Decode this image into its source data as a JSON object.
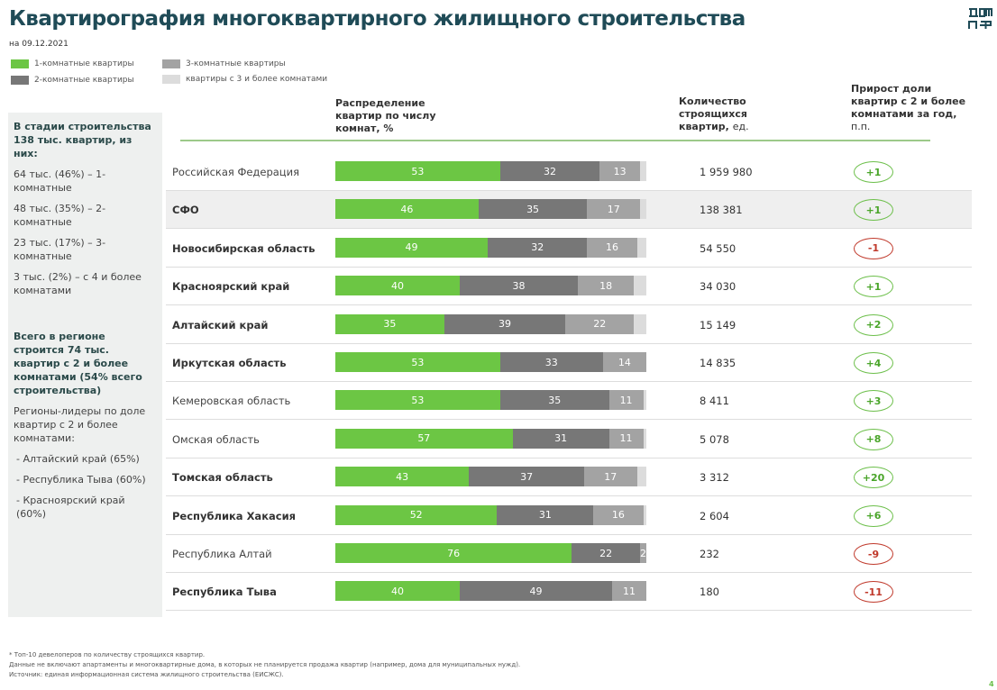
{
  "header": {
    "title": "Квартирография многоквартирного жилищного строительства",
    "date": "на 09.12.2021",
    "logo_text": "ДОМ РФ"
  },
  "legend": [
    {
      "label": "1-комнатные квартиры",
      "color": "#6cc644"
    },
    {
      "label": "2-комнатные квартиры",
      "color": "#777777"
    },
    {
      "label": "3-комнатные квартиры",
      "color": "#a3a3a3"
    },
    {
      "label": "квартиры с 3 и более комнатами",
      "color": "#dcdcdc"
    }
  ],
  "sidebar": {
    "heading": "В стадии строительства 138 тыс. квартир, из них:",
    "items": [
      "64 тыс. (46%) – 1-комнатные",
      "48 тыс. (35%) – 2-комнатные",
      "23 тыс. (17%) – 3-комнатные",
      "3 тыс. (2%) – с 4 и более комнатами"
    ],
    "summary": "Всего в регионе строится 74 тыс. квартир с 2 и более комнатами (54% всего строительства)",
    "leaders_title": "Регионы-лидеры по доле квартир с 2 и более комнатами:",
    "leaders": [
      "- Алтайский край (65%)",
      "- Республика Тыва (60%)",
      "- Красноярский край (60%)"
    ]
  },
  "columns": {
    "distribution": "Распределение квартир по числу комнат, %",
    "count_bold": "Количество строящихся квартир,",
    "count_unit": "ед.",
    "growth_bold": "Прирост доли квартир с 2 и более комнатами за год,",
    "growth_unit": "п.п."
  },
  "chart_data": {
    "type": "bar",
    "stacked": true,
    "orientation": "horizontal",
    "xlim": [
      0,
      100
    ],
    "series_names": [
      "1-комнатные квартиры",
      "2-комнатные квартиры",
      "3-комнатные квартиры",
      "квартиры с 3 и более комнатами"
    ],
    "rows": [
      {
        "region": "Российская Федерация",
        "bold": false,
        "values": [
          53,
          32,
          13,
          2
        ],
        "count": "1 959 980",
        "growth": "+1"
      },
      {
        "region": "СФО",
        "bold": true,
        "values": [
          46,
          35,
          17,
          2
        ],
        "count": "138 381",
        "growth": "+1"
      },
      {
        "region": "Новосибирская область",
        "bold": true,
        "values": [
          49,
          32,
          16,
          3
        ],
        "count": "54 550",
        "growth": "-1"
      },
      {
        "region": "Красноярский край",
        "bold": true,
        "values": [
          40,
          38,
          18,
          4
        ],
        "count": "34 030",
        "growth": "+1"
      },
      {
        "region": "Алтайский край",
        "bold": true,
        "values": [
          35,
          39,
          22,
          4
        ],
        "count": "15 149",
        "growth": "+2"
      },
      {
        "region": "Иркутская область",
        "bold": true,
        "values": [
          53,
          33,
          14,
          0
        ],
        "count": "14 835",
        "growth": "+4"
      },
      {
        "region": "Кемеровская область",
        "bold": false,
        "values": [
          53,
          35,
          11,
          1
        ],
        "count": "8 411",
        "growth": "+3"
      },
      {
        "region": "Омская область",
        "bold": false,
        "values": [
          57,
          31,
          11,
          1
        ],
        "count": "5 078",
        "growth": "+8"
      },
      {
        "region": "Томская область",
        "bold": true,
        "values": [
          43,
          37,
          17,
          3
        ],
        "count": "3 312",
        "growth": "+20"
      },
      {
        "region": "Республика Хакасия",
        "bold": true,
        "values": [
          52,
          31,
          16,
          1
        ],
        "count": "2 604",
        "growth": "+6"
      },
      {
        "region": "Республика Алтай",
        "bold": false,
        "values": [
          76,
          22,
          2,
          0
        ],
        "count": "232",
        "growth": "-9"
      },
      {
        "region": "Республика Тыва",
        "bold": true,
        "values": [
          40,
          49,
          11,
          0
        ],
        "count": "180",
        "growth": "-11"
      }
    ]
  },
  "footnotes": [
    "* Топ-10 девелоперов по количеству строящихся квартир.",
    "Данные не включают апартаменты и многоквартирные дома, в которых не планируется продажа квартир (например, дома для муниципальных нужд).",
    "Источник: единая информационная система жилищного строительства (ЕИСЖС)."
  ],
  "page_number": "4"
}
